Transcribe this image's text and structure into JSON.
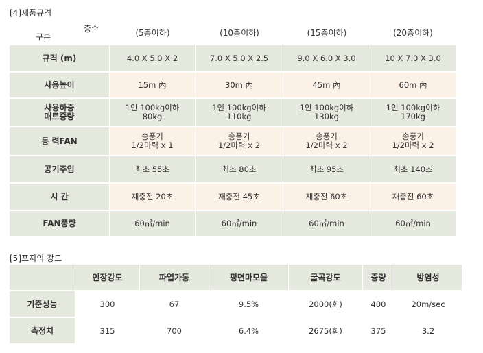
{
  "section1": {
    "title": "[4]제품규격"
  },
  "table1": {
    "corner_top": "층수",
    "corner_bottom": "구분",
    "columns": [
      "(5층이하)",
      "(10층이하)",
      "(15층이하)",
      "(20층이하)"
    ],
    "rows": [
      {
        "label": "규격 (m)",
        "values": [
          "4.0 X 5.0 X 2",
          "7.0 X 5.0 X 2.5",
          "9.0 X 6.0 X 3.0",
          "10 X 7.0 X 3.0"
        ]
      },
      {
        "label": "사용높이",
        "values": [
          "15m 內",
          "30m 內",
          "45m 內",
          "60m 內"
        ]
      },
      {
        "label": "사용하중\n매트중량",
        "values": [
          "1인 100kg이하\n80kg",
          "1인 100kg이하\n110kg",
          "1인 100kg이하\n130kg",
          "1인 100kg이하\n170kg"
        ]
      },
      {
        "label": "동 력FAN",
        "values": [
          "송풍기\n1/2마력 x 1",
          "송풍기\n1/2마력 x 2",
          "송풍기\n1/2마력 x 2",
          "송풍기\n1/2마력 x 2"
        ]
      },
      {
        "label": "공기주입",
        "values": [
          "최초 55초",
          "최초 80초",
          "최초 95초",
          "최초 140초"
        ]
      },
      {
        "label": "시 간",
        "values": [
          "재충전 20초",
          "재충전 45초",
          "재충전 60초",
          "재충전 60초"
        ]
      },
      {
        "label": "FAN풍량",
        "values": [
          "60㎥/min",
          "60㎥/min",
          "60㎥/min",
          "60㎥/min"
        ]
      }
    ]
  },
  "section2": {
    "title": "[5]포지의 강도"
  },
  "table2": {
    "headers": [
      "",
      "인장강도",
      "파열가동",
      "평면마모율",
      "굴곡강도",
      "중량",
      "방염성"
    ],
    "rows": [
      {
        "label": "기준성능",
        "values": [
          "300",
          "67",
          "9.5%",
          "2000(회)",
          "400",
          "20m/sec"
        ]
      },
      {
        "label": "측정치",
        "values": [
          "315",
          "700",
          "6.4%",
          "2675(회)",
          "375",
          "3.2"
        ]
      }
    ]
  }
}
